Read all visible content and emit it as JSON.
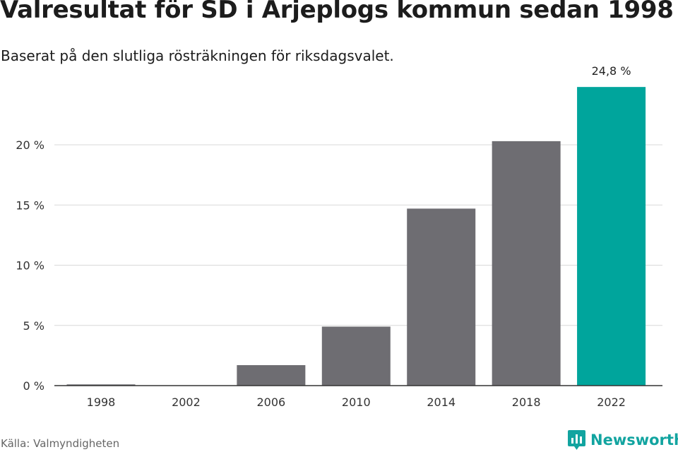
{
  "header": {
    "title": "Valresultat för SD i Arjeplogs kommun sedan 1998",
    "subtitle": "Baserat på den slutliga rösträkningen för riksdagsvalet."
  },
  "footer": {
    "source": "Källa: Valmyndigheten",
    "brand": "Newsworthy"
  },
  "colors": {
    "bar": "#6e6d72",
    "highlight": "#00a59c",
    "grid": "#d9d9d9",
    "axis": "#333333",
    "brand": "#12a4a0"
  },
  "chart_data": {
    "type": "bar",
    "categories": [
      "1998",
      "2002",
      "2006",
      "2010",
      "2014",
      "2018",
      "2022"
    ],
    "values": [
      0.1,
      0.0,
      1.7,
      4.9,
      14.7,
      20.3,
      24.8
    ],
    "highlight_index": 6,
    "data_label": "24,8 %",
    "ylim": [
      0,
      26
    ],
    "yticks": [
      0,
      5,
      10,
      15,
      20
    ],
    "ytick_labels": [
      "0 %",
      "5 %",
      "10 %",
      "15 %",
      "20 %"
    ],
    "grid": true
  }
}
